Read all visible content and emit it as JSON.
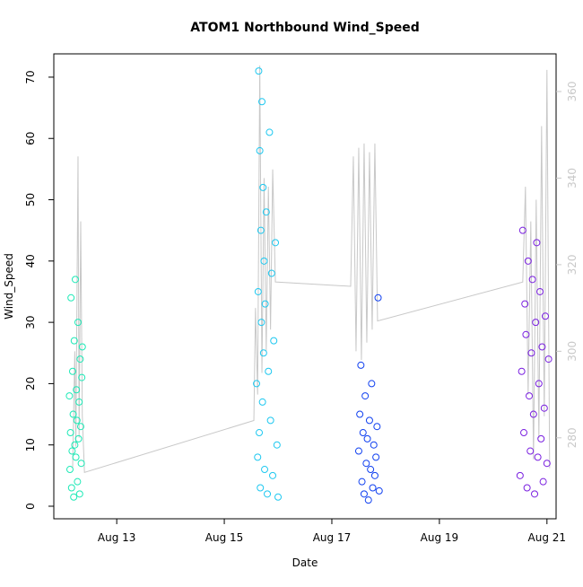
{
  "chart_data": {
    "type": "scatter",
    "title": "ATOM1 Northbound Wind_Speed",
    "xlabel": "Date",
    "ylabel": "Wind_Speed",
    "xlim": [
      11.83,
      21.17
    ],
    "xticks": [
      {
        "value": 13,
        "label": "Aug 13"
      },
      {
        "value": 15,
        "label": "Aug 15"
      },
      {
        "value": 17,
        "label": "Aug 17"
      },
      {
        "value": 19,
        "label": "Aug 19"
      },
      {
        "value": 21,
        "label": "Aug 21"
      }
    ],
    "ylim": [
      -2.05,
      73.8
    ],
    "yticks": [
      0,
      10,
      20,
      30,
      40,
      50,
      60,
      70
    ],
    "y2lim": [
      261.3,
      368.7
    ],
    "y2ticks": [
      280,
      300,
      320,
      340,
      360
    ],
    "y2color": "#c8c8c8",
    "series": [
      {
        "color": "#1de9b6",
        "x": [
          12.12,
          12.13,
          12.14,
          12.15,
          12.16,
          12.17,
          12.18,
          12.19,
          12.2,
          12.21,
          12.22,
          12.23,
          12.24,
          12.25,
          12.26,
          12.27,
          12.28,
          12.29,
          12.3,
          12.31,
          12.32,
          12.33,
          12.34,
          12.35,
          12.36
        ],
        "values": [
          18,
          6,
          12,
          34,
          3,
          9,
          22,
          15,
          1.5,
          27,
          10,
          37,
          8,
          19,
          14,
          4,
          30,
          11,
          17,
          2,
          24,
          13,
          7,
          21,
          26
        ]
      },
      {
        "color": "#1ec8f0",
        "x": [
          15.6,
          15.62,
          15.63,
          15.64,
          15.65,
          15.66,
          15.67,
          15.68,
          15.69,
          15.7,
          15.71,
          15.72,
          15.73,
          15.74,
          15.75,
          15.76,
          15.78,
          15.8,
          15.82,
          15.84,
          15.86,
          15.88,
          15.9,
          15.92,
          15.95,
          15.98,
          16.0
        ],
        "values": [
          20,
          8,
          35,
          71,
          12,
          58,
          3,
          45,
          30,
          66,
          17,
          52,
          25,
          40,
          6,
          33,
          48,
          2,
          22,
          61,
          14,
          38,
          5,
          27,
          43,
          10,
          1.5
        ]
      },
      {
        "color": "#1040f0",
        "x": [
          17.5,
          17.52,
          17.54,
          17.56,
          17.58,
          17.6,
          17.62,
          17.64,
          17.66,
          17.68,
          17.7,
          17.72,
          17.74,
          17.76,
          17.78,
          17.8,
          17.82,
          17.84,
          17.86,
          17.88
        ],
        "values": [
          9,
          15,
          23,
          4,
          12,
          2,
          18,
          7,
          11,
          1,
          14,
          6,
          20,
          3,
          10,
          5,
          8,
          13,
          34,
          2.5
        ]
      },
      {
        "color": "#7a20e0",
        "x": [
          20.5,
          20.53,
          20.55,
          20.57,
          20.59,
          20.61,
          20.63,
          20.65,
          20.67,
          20.69,
          20.71,
          20.73,
          20.75,
          20.77,
          20.79,
          20.81,
          20.83,
          20.85,
          20.87,
          20.89,
          20.91,
          20.93,
          20.95,
          20.97,
          21.0,
          21.03
        ],
        "values": [
          5,
          22,
          45,
          12,
          33,
          28,
          3,
          40,
          18,
          9,
          25,
          37,
          15,
          2,
          30,
          43,
          8,
          20,
          35,
          11,
          26,
          4,
          16,
          31,
          7,
          24
        ]
      },
      {
        "color": "#c8c8c8",
        "axis": "y2",
        "line": true,
        "x": [
          12.18,
          12.22,
          12.24,
          12.28,
          12.3,
          12.33,
          12.36,
          12.4,
          15.55,
          15.58,
          15.62,
          15.66,
          15.7,
          15.74,
          15.78,
          15.82,
          15.86,
          15.9,
          15.95,
          17.35,
          17.4,
          17.45,
          17.5,
          17.55,
          17.6,
          17.65,
          17.7,
          17.75,
          17.8,
          17.85,
          20.55,
          20.6,
          20.65,
          20.7,
          20.75,
          20.8,
          20.85,
          20.9,
          20.95,
          21.0,
          21.05
        ],
        "values": [
          273,
          300,
          278,
          345,
          280,
          330,
          285,
          272,
          284,
          310,
          290,
          366,
          295,
          340,
          300,
          338,
          305,
          342,
          316,
          315,
          345,
          300,
          347,
          298,
          348,
          302,
          346,
          305,
          348,
          307,
          316,
          338,
          290,
          330,
          275,
          335,
          280,
          352,
          285,
          365,
          273
        ]
      }
    ]
  }
}
